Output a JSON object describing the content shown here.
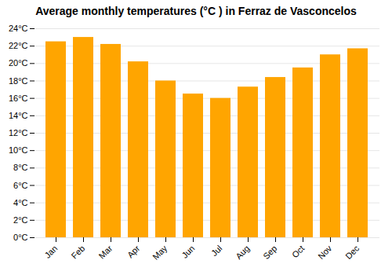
{
  "chart_data": {
    "type": "bar",
    "title": "Average monthly temperatures (°C ) in Ferraz de Vasconcelos",
    "categories": [
      "Jan",
      "Feb",
      "Mar",
      "Apr",
      "May",
      "Jun",
      "Jul",
      "Aug",
      "Sep",
      "Oct",
      "Nov",
      "Dec"
    ],
    "values": [
      22.5,
      23.0,
      22.2,
      20.2,
      18.0,
      16.5,
      16.0,
      17.3,
      18.4,
      19.5,
      21.0,
      21.7
    ],
    "color": "#FFA500",
    "ylim": [
      0,
      24
    ],
    "yticks": [
      {
        "value": 0,
        "label": "0°C"
      },
      {
        "value": 2,
        "label": "2°C"
      },
      {
        "value": 4,
        "label": "4°C"
      },
      {
        "value": 6,
        "label": "6°C"
      },
      {
        "value": 8,
        "label": "8°C"
      },
      {
        "value": 10,
        "label": "10°C"
      },
      {
        "value": 12,
        "label": "12°C"
      },
      {
        "value": 14,
        "label": "14°C"
      },
      {
        "value": 16,
        "label": "16°C"
      },
      {
        "value": 18,
        "label": "18°C"
      },
      {
        "value": 20,
        "label": "20°C"
      },
      {
        "value": 22,
        "label": "22°C"
      },
      {
        "value": 24,
        "label": "24°C"
      }
    ],
    "grid": true
  }
}
